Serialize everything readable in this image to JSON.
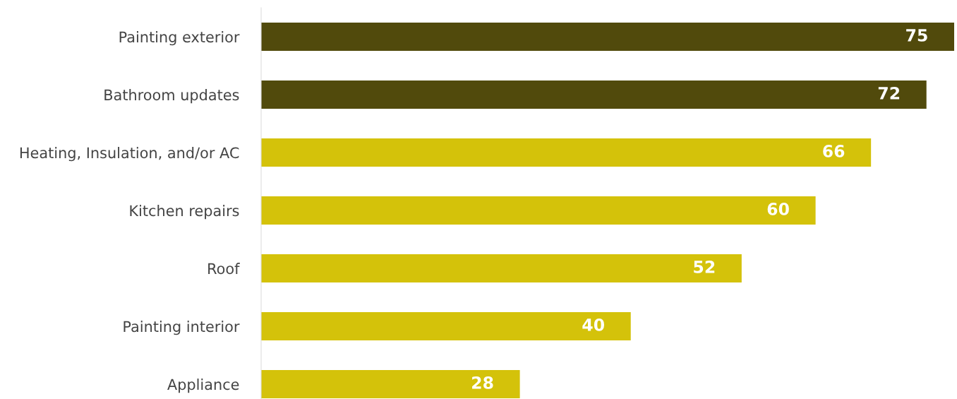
{
  "chart_data": {
    "type": "bar",
    "orientation": "horizontal",
    "categories": [
      "Painting exterior",
      "Bathroom updates",
      "Heating, Insulation, and/or AC",
      "Kitchen repairs",
      "Roof",
      "Painting interior",
      "Appliance"
    ],
    "values": [
      75,
      72,
      66,
      60,
      52,
      40,
      28
    ],
    "colors": [
      "#514a0c",
      "#514a0c",
      "#d4c20a",
      "#d4c20a",
      "#d4c20a",
      "#d4c20a",
      "#d4c20a"
    ],
    "data_labels": true,
    "grid": false,
    "legend": false
  }
}
